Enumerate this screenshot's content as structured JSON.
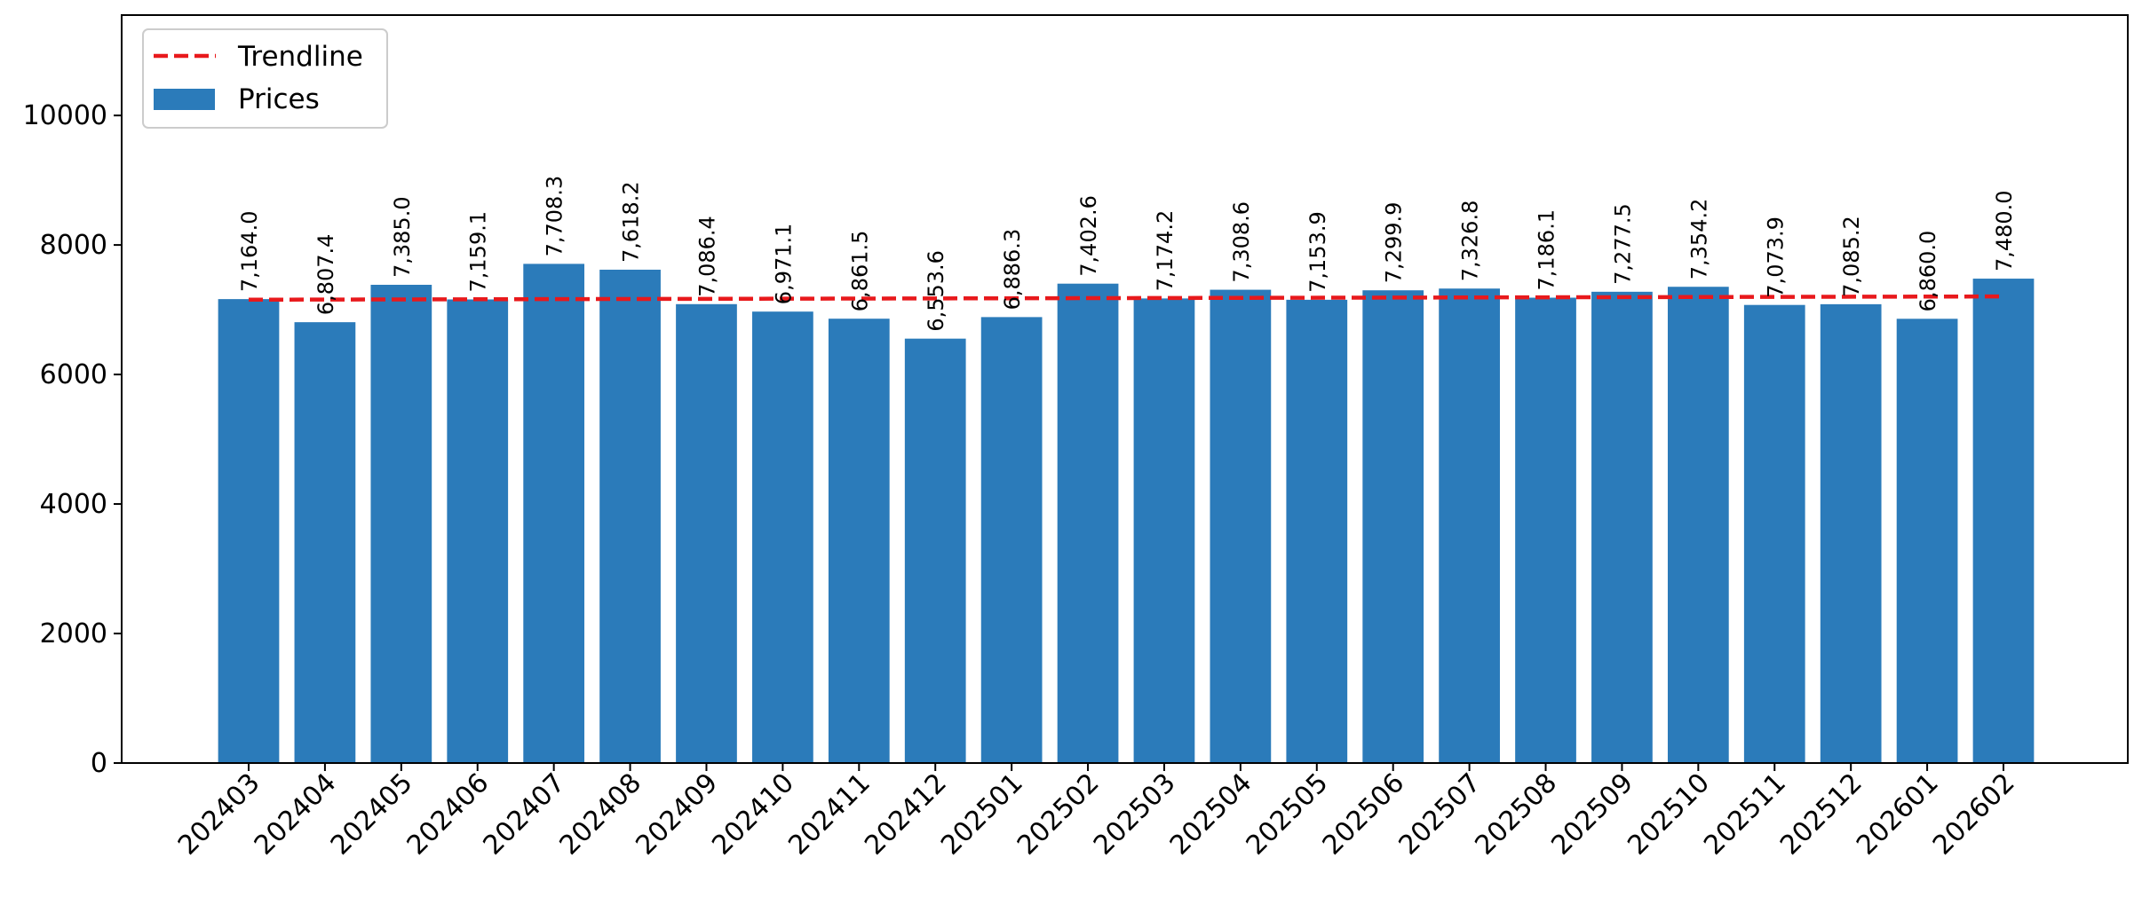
{
  "chart_data": {
    "type": "bar",
    "categories": [
      "202403",
      "202404",
      "202405",
      "202406",
      "202407",
      "202408",
      "202409",
      "202410",
      "202411",
      "202412",
      "202501",
      "202502",
      "202503",
      "202504",
      "202505",
      "202506",
      "202507",
      "202508",
      "202509",
      "202510",
      "202511",
      "202512",
      "202601",
      "202602"
    ],
    "series": [
      {
        "name": "Prices",
        "values": [
          7164.0,
          6807.4,
          7385.0,
          7159.1,
          7708.3,
          7618.2,
          7086.4,
          6971.1,
          6861.5,
          6553.6,
          6886.3,
          7402.6,
          7174.2,
          7308.6,
          7153.9,
          7299.9,
          7326.8,
          7186.1,
          7277.5,
          7354.2,
          7073.9,
          7085.2,
          6860.0,
          7480.0
        ],
        "value_labels": [
          "7,164.0",
          "6,807.4",
          "7,385.0",
          "7,159.1",
          "7,708.3",
          "7,618.2",
          "7,086.4",
          "6,971.1",
          "6,861.5",
          "6,553.6",
          "6,886.3",
          "7,402.6",
          "7,174.2",
          "7,308.6",
          "7,153.9",
          "7,299.9",
          "7,326.8",
          "7,186.1",
          "7,277.5",
          "7,354.2",
          "7,073.9",
          "7,085.2",
          "6,860.0",
          "7,480.0"
        ],
        "color": "#2b7bba"
      },
      {
        "name": "Trendline",
        "type": "line",
        "style": "dashed",
        "start": 7155,
        "end": 7205,
        "color": "#e8191c"
      }
    ],
    "title": "",
    "xlabel": "",
    "ylabel": "",
    "ylim": [
      0,
      11550
    ],
    "yticks": [
      0,
      2000,
      4000,
      6000,
      8000,
      10000
    ],
    "ytick_labels": [
      "0",
      "2000",
      "4000",
      "6000",
      "8000",
      "10000"
    ],
    "grid": false,
    "legend": {
      "position": "upper left",
      "entries": [
        "Trendline",
        "Prices"
      ]
    }
  }
}
